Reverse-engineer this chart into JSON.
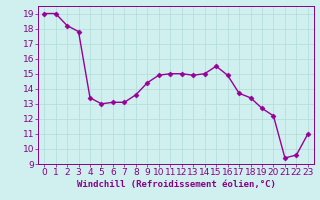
{
  "x": [
    0,
    1,
    2,
    3,
    4,
    5,
    6,
    7,
    8,
    9,
    10,
    11,
    12,
    13,
    14,
    15,
    16,
    17,
    18,
    19,
    20,
    21,
    22,
    23
  ],
  "y": [
    19.0,
    19.0,
    18.2,
    17.8,
    13.4,
    13.0,
    13.1,
    13.1,
    13.6,
    14.4,
    14.9,
    15.0,
    15.0,
    14.9,
    15.0,
    15.5,
    14.9,
    13.7,
    13.4,
    12.7,
    12.2,
    9.4,
    9.6,
    11.0
  ],
  "line_color": "#990099",
  "marker": "D",
  "marker_size": 2.5,
  "line_width": 1.0,
  "bg_color": "#cff0ee",
  "grid_color": "#b0ddd8",
  "xlabel": "Windchill (Refroidissement éolien,°C)",
  "xlabel_color": "#880088",
  "tick_color": "#880088",
  "spine_color": "#880088",
  "ylim": [
    9,
    19.5
  ],
  "xlim": [
    -0.5,
    23.5
  ],
  "yticks": [
    9,
    10,
    11,
    12,
    13,
    14,
    15,
    16,
    17,
    18,
    19
  ],
  "xticks": [
    0,
    1,
    2,
    3,
    4,
    5,
    6,
    7,
    8,
    9,
    10,
    11,
    12,
    13,
    14,
    15,
    16,
    17,
    18,
    19,
    20,
    21,
    22,
    23
  ],
  "xlabel_fontsize": 6.5,
  "tick_fontsize": 6.5
}
